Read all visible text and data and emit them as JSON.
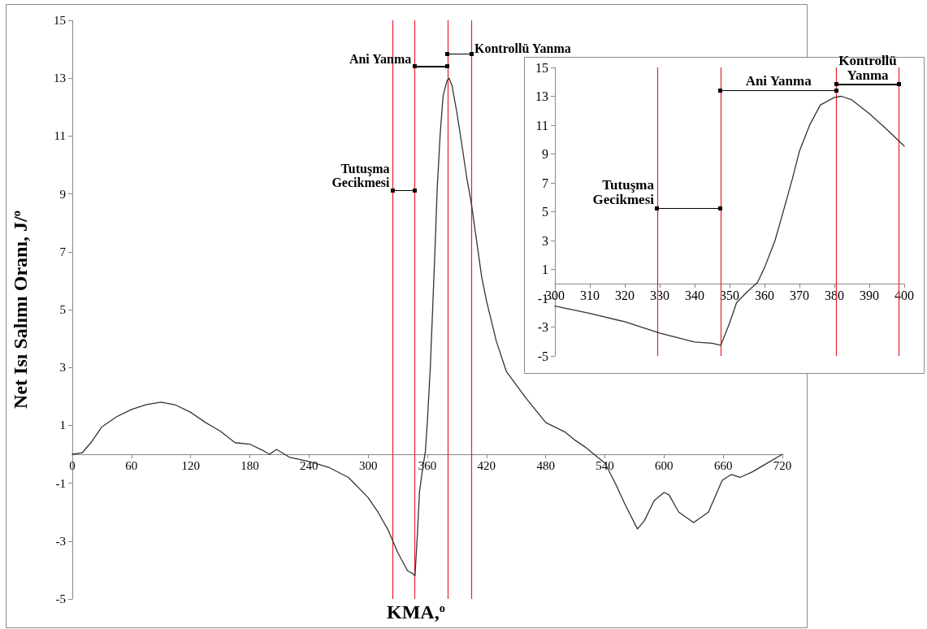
{
  "chart_data": [
    {
      "type": "line",
      "xlabel": "KMA,$^{o}$",
      "ylabel": "Net Isı Salımı Oranı, J/$^{o}$",
      "color": "#333333",
      "line_style": "solid",
      "marker": "none",
      "grid": false,
      "x": [
        0,
        10,
        20,
        30,
        45,
        60,
        75,
        90,
        105,
        120,
        135,
        150,
        165,
        180,
        195,
        200,
        207,
        213,
        220,
        240,
        260,
        280,
        300,
        310,
        320,
        330,
        340,
        345,
        347.5,
        350,
        352,
        355,
        358,
        360,
        363,
        365,
        368,
        370,
        373,
        376,
        380,
        382,
        385,
        390,
        395,
        400,
        404.5,
        415,
        420,
        430,
        440,
        460,
        480,
        500,
        510,
        520,
        530,
        540,
        550,
        560,
        573,
        580,
        590,
        600,
        605,
        615,
        630,
        645,
        659,
        668,
        677,
        690,
        705,
        720
      ],
      "values": [
        0,
        0.05,
        0.45,
        0.95,
        1.3,
        1.55,
        1.72,
        1.8,
        1.7,
        1.45,
        1.1,
        0.8,
        0.4,
        0.35,
        0.1,
        0,
        0.17,
        0.05,
        -0.1,
        -0.25,
        -0.45,
        -0.8,
        -1.5,
        -2,
        -2.6,
        -3.4,
        -4.03,
        -4.12,
        -4.2,
        -2.72,
        -1.31,
        -0.56,
        0.1,
        1.12,
        3,
        4.7,
        7.3,
        9.2,
        11.05,
        12.4,
        12.92,
        13,
        12.75,
        11.8,
        10.7,
        9.55,
        8.7,
        6.15,
        5.3,
        3.9,
        2.87,
        1.94,
        1.1,
        0.76,
        0.48,
        0.25,
        -0.03,
        -0.3,
        -0.96,
        -1.7,
        -2.58,
        -2.3,
        -1.6,
        -1.32,
        -1.4,
        -2,
        -2.36,
        -2.0,
        -0.9,
        -0.7,
        -0.8,
        -0.6,
        -0.3,
        0
      ],
      "xlim": [
        0,
        720
      ],
      "xticks": [
        0,
        60,
        120,
        180,
        240,
        300,
        360,
        420,
        480,
        540,
        600,
        660,
        720
      ],
      "ylim": [
        -5,
        15
      ],
      "yticks": [
        -5,
        -3,
        -1,
        1,
        3,
        5,
        7,
        9,
        11,
        13,
        15
      ],
      "ref_lines": [
        {
          "axis": "x",
          "value": 325,
          "color": "#e8202a"
        },
        {
          "axis": "x",
          "value": 347,
          "color": "#e8202a"
        },
        {
          "axis": "x",
          "value": 380.5,
          "color": "#e8202a"
        },
        {
          "axis": "x",
          "value": 404.5,
          "color": "#e8202a"
        }
      ],
      "annotations": [
        "Tutuşma Gecikmesi",
        "Ani Yanma",
        "Kontrollü Yanma"
      ]
    },
    {
      "type": "line",
      "color": "#333333",
      "line_style": "solid",
      "marker": "none",
      "grid": false,
      "x": [
        300,
        310,
        320,
        330,
        340,
        345,
        347.5,
        350,
        352,
        355,
        358,
        360,
        363,
        365,
        368,
        370,
        373,
        376,
        380,
        382,
        385,
        390,
        395,
        400
      ],
      "values": [
        -1.54,
        -2.05,
        -2.63,
        -3.41,
        -4.03,
        -4.12,
        -4.26,
        -2.72,
        -1.31,
        -0.56,
        0.1,
        1.12,
        3,
        4.7,
        7.3,
        9.2,
        11.05,
        12.4,
        12.92,
        13,
        12.75,
        11.8,
        10.7,
        9.55
      ],
      "xlim": [
        300,
        400
      ],
      "xticks": [
        300,
        310,
        320,
        330,
        340,
        350,
        360,
        370,
        380,
        390,
        400
      ],
      "ylim": [
        -5,
        15
      ],
      "yticks": [
        -5,
        -3,
        -1,
        1,
        3,
        5,
        7,
        9,
        11,
        13,
        15
      ],
      "ref_lines": [
        {
          "axis": "x",
          "value": 329.3,
          "color": "#e8202a"
        },
        {
          "axis": "x",
          "value": 347.4,
          "color": "#e8202a"
        },
        {
          "axis": "x",
          "value": 380.6,
          "color": "#e8202a"
        },
        {
          "axis": "x",
          "value": 398.5,
          "color": "#e8202a"
        }
      ],
      "annotations": [
        "Tutuşma Gecikmesi",
        "Ani Yanma",
        "Kontrollü Yanma"
      ]
    }
  ]
}
